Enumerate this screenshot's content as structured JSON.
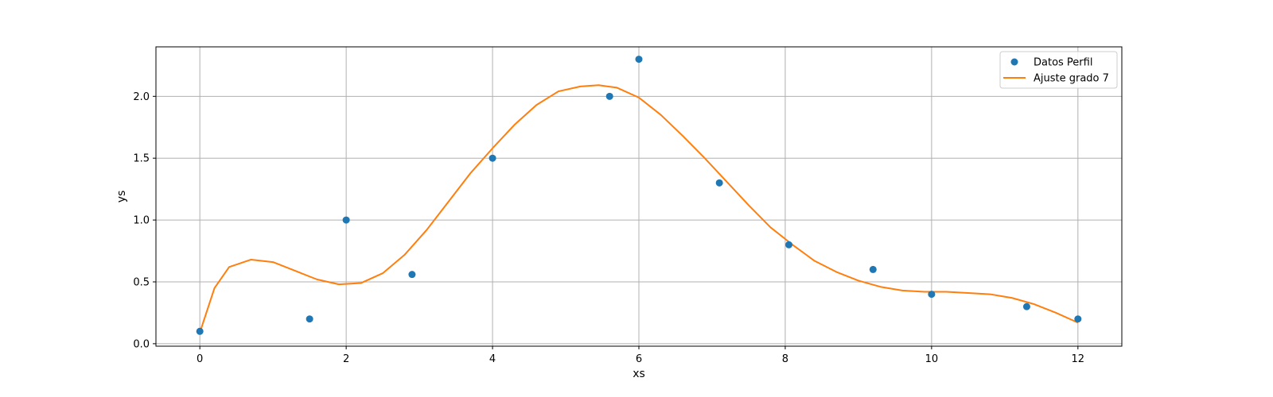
{
  "chart_data": {
    "type": "scatter",
    "xlabel": "xs",
    "ylabel": "ys",
    "xlim": [
      -0.6,
      12.6
    ],
    "ylim": [
      -0.02,
      2.4
    ],
    "xticks": [
      0,
      2,
      4,
      6,
      8,
      10,
      12
    ],
    "yticks": [
      0.0,
      0.5,
      1.0,
      1.5,
      2.0
    ],
    "xtick_labels": [
      "0",
      "2",
      "4",
      "6",
      "8",
      "10",
      "12"
    ],
    "ytick_labels": [
      "0.0",
      "0.5",
      "1.0",
      "1.5",
      "2.0"
    ],
    "grid": true,
    "legend_position": "top-right",
    "series": [
      {
        "name": "Datos Perfil",
        "kind": "points",
        "color": "#1f77b4",
        "x": [
          0,
          1.5,
          2,
          2.9,
          4,
          5.6,
          6,
          7.1,
          8.05,
          9.2,
          10,
          11.3,
          12
        ],
        "y": [
          0.1,
          0.2,
          1.0,
          0.56,
          1.5,
          2.0,
          2.3,
          1.3,
          0.8,
          0.6,
          0.4,
          0.3,
          0.2
        ]
      },
      {
        "name": "Ajuste grado 7",
        "kind": "line",
        "color": "#ff7f0e",
        "x": [
          0,
          0.2,
          0.4,
          0.7,
          1.0,
          1.3,
          1.6,
          1.9,
          2.2,
          2.5,
          2.8,
          3.1,
          3.4,
          3.7,
          4.0,
          4.3,
          4.6,
          4.9,
          5.2,
          5.45,
          5.7,
          6.0,
          6.3,
          6.6,
          6.9,
          7.2,
          7.5,
          7.8,
          8.1,
          8.4,
          8.7,
          9.0,
          9.3,
          9.6,
          9.9,
          10.2,
          10.5,
          10.8,
          11.1,
          11.4,
          11.7,
          12.0
        ],
        "y": [
          0.09,
          0.45,
          0.62,
          0.68,
          0.66,
          0.59,
          0.52,
          0.48,
          0.49,
          0.57,
          0.72,
          0.92,
          1.15,
          1.38,
          1.58,
          1.77,
          1.93,
          2.04,
          2.08,
          2.09,
          2.07,
          1.99,
          1.85,
          1.68,
          1.5,
          1.31,
          1.12,
          0.94,
          0.8,
          0.67,
          0.58,
          0.51,
          0.46,
          0.43,
          0.42,
          0.42,
          0.41,
          0.4,
          0.37,
          0.32,
          0.25,
          0.17
        ]
      }
    ]
  }
}
